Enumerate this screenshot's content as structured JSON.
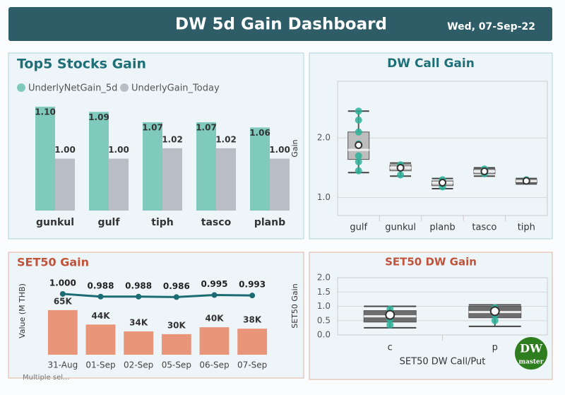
{
  "header": {
    "title": "DW 5d Gain Dashboard",
    "date": "Wed, 07-Sep-22"
  },
  "logo": {
    "line1": "DW",
    "line2": "master"
  },
  "footer_label": "Multiple sel...",
  "chart_data": [
    {
      "type": "bar",
      "title": "Top5 Stocks Gain",
      "categories": [
        "gunkul",
        "gulf",
        "tiph",
        "tasco",
        "planb"
      ],
      "series": [
        {
          "name": "UnderlyNetGain_5d",
          "color": "#7fcabd",
          "values": [
            1.1,
            1.09,
            1.07,
            1.07,
            1.06
          ],
          "value_labels": [
            "1.10",
            "1.09",
            "1.07",
            "1.07",
            "1.06"
          ]
        },
        {
          "name": "UnderlyGain_Today",
          "color": "#b9bec6",
          "values": [
            1,
            1,
            1.02,
            1.02,
            1
          ],
          "value_labels": [
            "1.00",
            "1.00",
            "1.02",
            "1.02",
            "1.00"
          ]
        }
      ],
      "ylim": [
        0.9,
        1.1
      ]
    },
    {
      "type": "box",
      "title": "DW Call Gain",
      "y_label": "Gain",
      "categories": [
        "gulf",
        "gunkul",
        "planb",
        "tasco",
        "tiph"
      ],
      "boxes": [
        {
          "low": 1.42,
          "q1": 1.64,
          "median": 1.8,
          "q3": 2.1,
          "high": 2.45,
          "mean": 1.88,
          "points": [
            2.45,
            2.3,
            2.1,
            1.9,
            1.7,
            1.6,
            1.45
          ]
        },
        {
          "low": 1.36,
          "q1": 1.45,
          "median": 1.5,
          "q3": 1.55,
          "high": 1.58,
          "mean": 1.5,
          "points": [
            1.55,
            1.5,
            1.38
          ]
        },
        {
          "low": 1.15,
          "q1": 1.2,
          "median": 1.25,
          "q3": 1.28,
          "high": 1.32,
          "mean": 1.25,
          "points": [
            1.3,
            1.18
          ]
        },
        {
          "low": 1.36,
          "q1": 1.4,
          "median": 1.44,
          "q3": 1.48,
          "high": 1.5,
          "mean": 1.44,
          "points": [
            1.48,
            1.4
          ]
        },
        {
          "low": 1.23,
          "q1": 1.25,
          "median": 1.28,
          "q3": 1.3,
          "high": 1.32,
          "mean": 1.28,
          "points": [
            1.3
          ]
        }
      ],
      "color": "#2bb39a",
      "ylim": [
        0.7,
        2.95
      ],
      "yticks": [
        {
          "value": 1,
          "label": "1.0"
        },
        {
          "value": 2,
          "label": "2.0"
        }
      ],
      "grid": true
    },
    {
      "type": "bar",
      "title": "SET50 Gain",
      "y_label": "Value (M THB)",
      "categories": [
        "31-Aug",
        "01-Sep",
        "02-Sep",
        "05-Sep",
        "06-Sep",
        "07-Sep"
      ],
      "series": [
        {
          "color": "#e8957a",
          "values": [
            65000,
            44000,
            34000,
            30000,
            40000,
            38000
          ],
          "value_labels": [
            "65K",
            "44K",
            "34K",
            "30K",
            "40K",
            "38K"
          ]
        },
        {
          "type": "line",
          "axis": "y2",
          "color": "#1b6b73",
          "values": [
            1,
            0.988,
            0.988,
            0.986,
            0.995,
            0.993
          ],
          "value_labels": [
            "1.000",
            "0.988",
            "0.988",
            "0.986",
            "0.995",
            "0.993"
          ]
        }
      ],
      "ylim": [
        0,
        105000
      ],
      "y2lim": [
        0.73,
        1.05
      ]
    },
    {
      "type": "box",
      "title": "SET50 DW Gain",
      "y_label": "SET50 Gain",
      "x_label": "SET50 DW Call/Put",
      "categories": [
        "c",
        "p"
      ],
      "boxes": [
        {
          "low": 0.25,
          "q1": 0.45,
          "median": 0.65,
          "q3": 0.85,
          "high": 1.0,
          "mean": 0.7,
          "points": [
            0.35,
            0.55,
            0.75,
            0.9
          ]
        },
        {
          "low": 0.3,
          "q1": 0.6,
          "median": 0.8,
          "q3": 1.0,
          "high": 1.05,
          "mean": 0.83,
          "points": [
            0.5,
            0.7,
            0.95
          ]
        }
      ],
      "color": "#2bb39a",
      "ylim": [
        0,
        2
      ],
      "yticks": [
        {
          "value": 0,
          "label": "0.0"
        },
        {
          "value": 0.5,
          "label": "0.5"
        },
        {
          "value": 1,
          "label": "1.0"
        },
        {
          "value": 1.5,
          "label": "1.5"
        },
        {
          "value": 2,
          "label": "2.0"
        }
      ],
      "grid": true
    }
  ]
}
